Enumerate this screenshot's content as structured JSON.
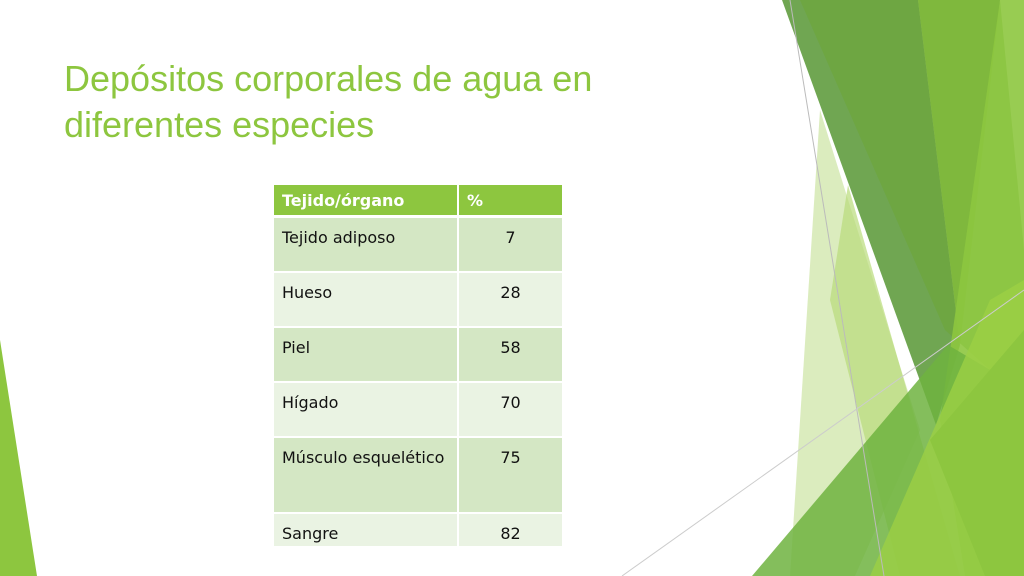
{
  "slide": {
    "title": "Depósitos corporales de agua en diferentes especies"
  },
  "table": {
    "headers": [
      "Tejido/órgano",
      "%"
    ],
    "rows": [
      {
        "tissue": "Tejido adiposo",
        "percent": "7"
      },
      {
        "tissue": "Hueso",
        "percent": "28"
      },
      {
        "tissue": "Piel",
        "percent": "58"
      },
      {
        "tissue": "Hígado",
        "percent": "70"
      },
      {
        "tissue": "Músculo esquelético",
        "percent": "75"
      },
      {
        "tissue": "Sangre",
        "percent": "82"
      }
    ]
  },
  "theme": {
    "accent": "#8dc63f",
    "title_color": "#8dc63f",
    "row_dark": "#d4e7c4",
    "row_light": "#eaf3e3"
  }
}
